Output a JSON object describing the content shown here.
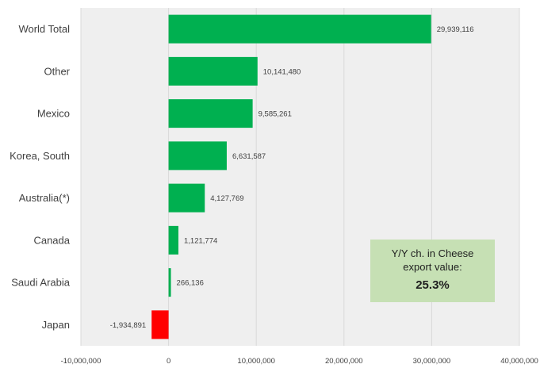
{
  "chart_data": {
    "type": "bar",
    "orientation": "horizontal",
    "categories": [
      "World Total",
      "Other",
      "Mexico",
      "Korea, South",
      "Australia(*)",
      "Canada",
      "Saudi Arabia",
      "Japan"
    ],
    "values": [
      29939116,
      10141480,
      9585261,
      6631587,
      4127769,
      1121774,
      266136,
      -1934891
    ],
    "data_labels": [
      "29,939,116",
      "10,141,480",
      "9,585,261",
      "6,631,587",
      "4,127,769",
      "1,121,774",
      "266,136",
      "-1,934,891"
    ],
    "xlim": [
      -10000000,
      40000000
    ],
    "x_ticks": [
      -10000000,
      0,
      10000000,
      20000000,
      30000000,
      40000000
    ],
    "x_tick_labels": [
      "-10,000,000",
      "0",
      "10,000,000",
      "20,000,000",
      "30,000,000",
      "40,000,000"
    ],
    "grid": true,
    "colors": {
      "positive": "#00b050",
      "negative": "#ff0000",
      "plot_background": "#efefef",
      "gridline": "#d9d9d9"
    }
  },
  "callout": {
    "line1": "Y/Y ch. in Cheese",
    "line2": "export value:",
    "value": "25.3%",
    "background": "#c6e0b4"
  }
}
